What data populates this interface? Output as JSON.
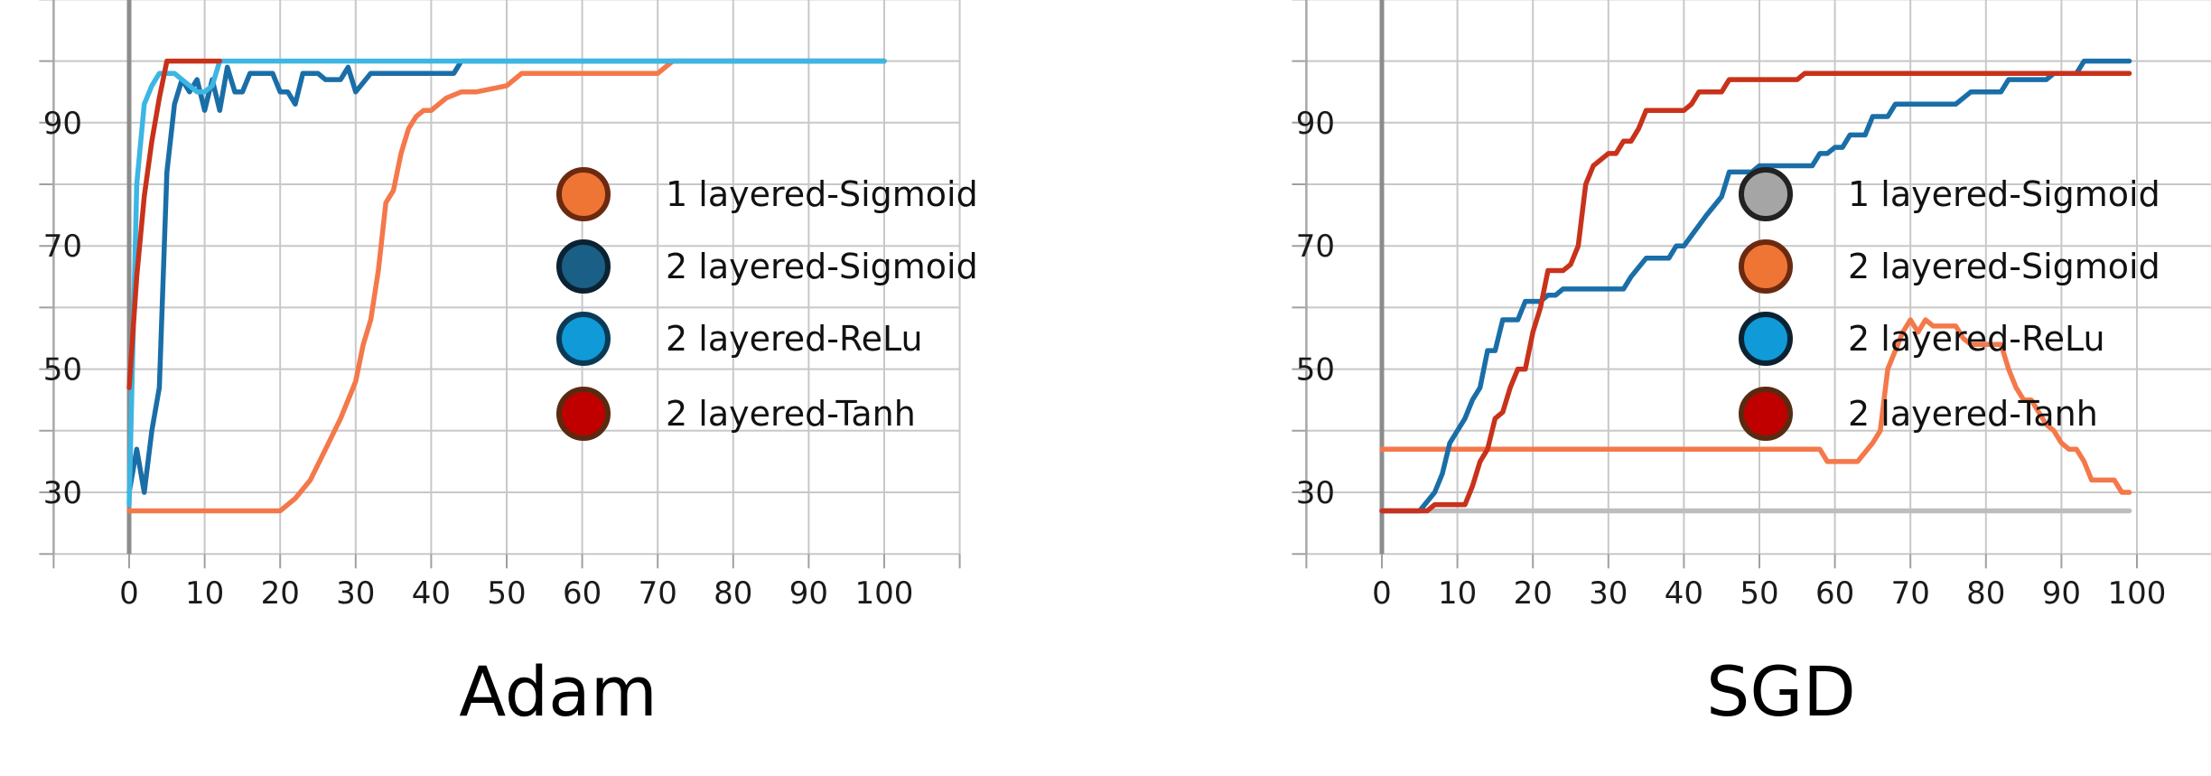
{
  "chart_data": [
    {
      "type": "line",
      "title": "Adam",
      "xlabel": "",
      "ylabel": "",
      "xlim": [
        -10,
        110
      ],
      "ylim": [
        20,
        110
      ],
      "x_ticks": [
        0,
        10,
        20,
        30,
        40,
        50,
        60,
        70,
        80,
        90,
        100
      ],
      "y_ticks": [
        30,
        50,
        70,
        90
      ],
      "grid": true,
      "legend_position": "right",
      "series": [
        {
          "name": "1 layered-Sigmoid",
          "color": "#f4784a",
          "marker_fill": "#ef7535",
          "marker_edge": "#6b2a10",
          "points": [
            [
              0,
              27
            ],
            [
              20,
              27
            ],
            [
              22,
              29
            ],
            [
              24,
              32
            ],
            [
              26,
              37
            ],
            [
              28,
              42
            ],
            [
              30,
              48
            ],
            [
              31,
              54
            ],
            [
              32,
              58
            ],
            [
              33,
              66
            ],
            [
              34,
              77
            ],
            [
              35,
              79
            ],
            [
              36,
              85
            ],
            [
              37,
              89
            ],
            [
              38,
              91
            ],
            [
              39,
              92
            ],
            [
              40,
              92
            ],
            [
              42,
              94
            ],
            [
              44,
              95
            ],
            [
              46,
              95
            ],
            [
              50,
              96
            ],
            [
              52,
              98
            ],
            [
              60,
              98
            ],
            [
              70,
              98
            ],
            [
              71,
              99
            ],
            [
              72,
              100
            ],
            [
              100,
              100
            ]
          ]
        },
        {
          "name": "2 layered-Sigmoid",
          "color": "#1a6ea8",
          "marker_fill": "#1a5f85",
          "marker_edge": "#0b2233",
          "points": [
            [
              0,
              30
            ],
            [
              1,
              37
            ],
            [
              2,
              30
            ],
            [
              3,
              40
            ],
            [
              4,
              47
            ],
            [
              5,
              82
            ],
            [
              6,
              93
            ],
            [
              7,
              97
            ],
            [
              8,
              95
            ],
            [
              9,
              97
            ],
            [
              10,
              92
            ],
            [
              11,
              97
            ],
            [
              12,
              92
            ],
            [
              13,
              99
            ],
            [
              14,
              95
            ],
            [
              15,
              95
            ],
            [
              16,
              98
            ],
            [
              18,
              98
            ],
            [
              19,
              98
            ],
            [
              20,
              95
            ],
            [
              21,
              95
            ],
            [
              22,
              93
            ],
            [
              23,
              98
            ],
            [
              25,
              98
            ],
            [
              26,
              97
            ],
            [
              28,
              97
            ],
            [
              29,
              99
            ],
            [
              30,
              95
            ],
            [
              32,
              98
            ],
            [
              35,
              98
            ],
            [
              40,
              98
            ],
            [
              43,
              98
            ],
            [
              44,
              100
            ],
            [
              100,
              100
            ]
          ]
        },
        {
          "name": "2 layered-ReLu",
          "color": "#3cb6e3",
          "marker_fill": "#109ad8",
          "marker_edge": "#0a3a55",
          "points": [
            [
              0,
              28
            ],
            [
              1,
              80
            ],
            [
              2,
              93
            ],
            [
              3,
              96
            ],
            [
              4,
              98
            ],
            [
              5,
              98
            ],
            [
              6,
              98
            ],
            [
              7,
              97
            ],
            [
              8,
              96
            ],
            [
              9,
              95
            ],
            [
              10,
              95
            ],
            [
              11,
              96
            ],
            [
              12,
              100
            ],
            [
              100,
              100
            ]
          ]
        },
        {
          "name": "2 layered-Tanh",
          "color": "#c8321b",
          "marker_fill": "#c00000",
          "marker_edge": "#5a2a10",
          "points": [
            [
              0,
              47
            ],
            [
              1,
              65
            ],
            [
              2,
              78
            ],
            [
              3,
              87
            ],
            [
              4,
              94
            ],
            [
              5,
              100
            ],
            [
              12,
              100
            ]
          ]
        }
      ]
    },
    {
      "type": "line",
      "title": "SGD",
      "xlabel": "",
      "ylabel": "",
      "xlim": [
        -10,
        110
      ],
      "ylim": [
        20,
        110
      ],
      "x_ticks": [
        0,
        10,
        20,
        30,
        40,
        50,
        60,
        70,
        80,
        90,
        100
      ],
      "y_ticks": [
        30,
        50,
        70,
        90
      ],
      "grid": true,
      "legend_position": "right",
      "series": [
        {
          "name": "1 layered-Sigmoid",
          "color": "#bdbdbd",
          "marker_fill": "#a5a5a5",
          "marker_edge": "#222222",
          "points": [
            [
              0,
              27
            ],
            [
              99,
              27
            ]
          ]
        },
        {
          "name": "2 layered-Sigmoid",
          "color": "#f4784a",
          "marker_fill": "#ef7535",
          "marker_edge": "#6b2a10",
          "points": [
            [
              0,
              37
            ],
            [
              58,
              37
            ],
            [
              59,
              35
            ],
            [
              63,
              35
            ],
            [
              65,
              38
            ],
            [
              66,
              40
            ],
            [
              67,
              50
            ],
            [
              68,
              53
            ],
            [
              69,
              56
            ],
            [
              70,
              58
            ],
            [
              71,
              56
            ],
            [
              72,
              58
            ],
            [
              73,
              57
            ],
            [
              76,
              57
            ],
            [
              77,
              55
            ],
            [
              78,
              54
            ],
            [
              82,
              54
            ],
            [
              83,
              50
            ],
            [
              84,
              47
            ],
            [
              85,
              45
            ],
            [
              86,
              45
            ],
            [
              87,
              43
            ],
            [
              88,
              41
            ],
            [
              89,
              40
            ],
            [
              90,
              38
            ],
            [
              91,
              37
            ],
            [
              92,
              37
            ],
            [
              93,
              35
            ],
            [
              94,
              32
            ],
            [
              97,
              32
            ],
            [
              98,
              30
            ],
            [
              99,
              30
            ]
          ]
        },
        {
          "name": "2 layered-ReLu",
          "color": "#1a6ea8",
          "marker_fill": "#109ad8",
          "marker_edge": "#0b2233",
          "points": [
            [
              0,
              27
            ],
            [
              5,
              27
            ],
            [
              7,
              30
            ],
            [
              8,
              33
            ],
            [
              9,
              38
            ],
            [
              10,
              40
            ],
            [
              11,
              42
            ],
            [
              12,
              45
            ],
            [
              13,
              47
            ],
            [
              14,
              53
            ],
            [
              15,
              53
            ],
            [
              16,
              58
            ],
            [
              18,
              58
            ],
            [
              19,
              61
            ],
            [
              20,
              61
            ],
            [
              21,
              61
            ],
            [
              22,
              62
            ],
            [
              23,
              62
            ],
            [
              24,
              63
            ],
            [
              32,
              63
            ],
            [
              33,
              65
            ],
            [
              35,
              68
            ],
            [
              37,
              68
            ],
            [
              38,
              68
            ],
            [
              39,
              70
            ],
            [
              40,
              70
            ],
            [
              43,
              75
            ],
            [
              45,
              78
            ],
            [
              46,
              82
            ],
            [
              49,
              82
            ],
            [
              50,
              83
            ],
            [
              57,
              83
            ],
            [
              58,
              85
            ],
            [
              59,
              85
            ],
            [
              60,
              86
            ],
            [
              61,
              86
            ],
            [
              62,
              88
            ],
            [
              64,
              88
            ],
            [
              65,
              91
            ],
            [
              67,
              91
            ],
            [
              68,
              93
            ],
            [
              75,
              93
            ],
            [
              76,
              93
            ],
            [
              78,
              95
            ],
            [
              81,
              95
            ],
            [
              82,
              95
            ],
            [
              83,
              97
            ],
            [
              88,
              97
            ],
            [
              89,
              98
            ],
            [
              92,
              98
            ],
            [
              93,
              100
            ],
            [
              99,
              100
            ]
          ]
        },
        {
          "name": "2 layered-Tanh",
          "color": "#c8321b",
          "marker_fill": "#c00000",
          "marker_edge": "#5a2a10",
          "points": [
            [
              0,
              27
            ],
            [
              6,
              27
            ],
            [
              7,
              28
            ],
            [
              11,
              28
            ],
            [
              12,
              31
            ],
            [
              13,
              35
            ],
            [
              14,
              37
            ],
            [
              15,
              42
            ],
            [
              16,
              43
            ],
            [
              17,
              47
            ],
            [
              18,
              50
            ],
            [
              19,
              50
            ],
            [
              20,
              56
            ],
            [
              21,
              60
            ],
            [
              22,
              66
            ],
            [
              24,
              66
            ],
            [
              25,
              67
            ],
            [
              26,
              70
            ],
            [
              27,
              80
            ],
            [
              28,
              83
            ],
            [
              29,
              84
            ],
            [
              30,
              85
            ],
            [
              31,
              85
            ],
            [
              32,
              87
            ],
            [
              33,
              87
            ],
            [
              34,
              89
            ],
            [
              35,
              92
            ],
            [
              40,
              92
            ],
            [
              41,
              93
            ],
            [
              42,
              95
            ],
            [
              43,
              95
            ],
            [
              44,
              95
            ],
            [
              45,
              95
            ],
            [
              46,
              97
            ],
            [
              50,
              97
            ],
            [
              55,
              97
            ],
            [
              56,
              98
            ],
            [
              57,
              98
            ],
            [
              99,
              98
            ]
          ]
        }
      ]
    }
  ]
}
